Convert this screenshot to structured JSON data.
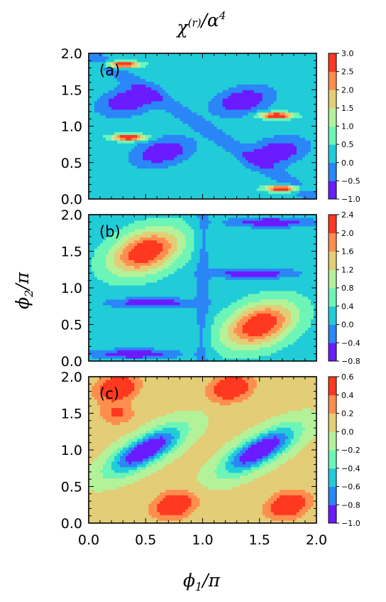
{
  "figure": {
    "title": "χ(r)/α4",
    "xlabel": "ϕ1/π",
    "ylabel": "ϕ2/π"
  },
  "chart_data": [
    {
      "type": "heatmap",
      "panel_label": "(a)",
      "x_range": [
        0.0,
        2.0
      ],
      "y_range": [
        0.0,
        2.0
      ],
      "x_ticks": [
        "0.0",
        "0.5",
        "1.0",
        "1.5",
        "2.0"
      ],
      "y_ticks": [
        "0.0",
        "0.5",
        "1.0",
        "1.5",
        "2.0"
      ],
      "colorbar_levels": [
        -1.0,
        -0.5,
        0.0,
        0.5,
        1.0,
        1.5,
        2.0,
        2.5,
        3.0
      ],
      "colorbar_ticks": [
        "−1.0",
        "−0.5",
        "0.0",
        "0.5",
        "1.0",
        "1.5",
        "2.0",
        "2.5",
        "3.0"
      ],
      "features": {
        "peak_points_x_y": [
          [
            0.3,
            1.85
          ],
          [
            0.35,
            0.85
          ],
          [
            1.65,
            1.15
          ],
          [
            1.7,
            0.15
          ]
        ],
        "low_lobe_points_x_y": [
          [
            0.35,
            1.35
          ],
          [
            0.65,
            0.65
          ],
          [
            1.35,
            1.35
          ],
          [
            1.65,
            0.65
          ]
        ]
      },
      "colormap": "rainbow"
    },
    {
      "type": "heatmap",
      "panel_label": "(b)",
      "x_range": [
        0.0,
        2.0
      ],
      "y_range": [
        0.0,
        2.0
      ],
      "x_ticks": [
        "0.0",
        "0.5",
        "1.0",
        "1.5",
        "2.0"
      ],
      "y_ticks": [
        "0.0",
        "0.5",
        "1.0",
        "1.5",
        "2.0"
      ],
      "colorbar_levels": [
        -0.8,
        -0.4,
        0.0,
        0.4,
        0.8,
        1.2,
        1.6,
        2.0,
        2.4
      ],
      "colorbar_ticks": [
        "−0.8",
        "−0.4",
        "0.0",
        "0.4",
        "0.8",
        "1.2",
        "1.6",
        "2.0",
        "2.4"
      ],
      "features": {
        "peak_points_x_y": [
          [
            0.5,
            1.5
          ],
          [
            1.5,
            0.5
          ]
        ],
        "low_lobe_points_x_y": [
          [
            0.5,
            0.75
          ],
          [
            1.5,
            1.25
          ],
          [
            0.5,
            0.1
          ],
          [
            1.5,
            1.9
          ]
        ]
      },
      "colormap": "rainbow"
    },
    {
      "type": "heatmap",
      "panel_label": "(c)",
      "x_range": [
        0.0,
        2.0
      ],
      "y_range": [
        0.0,
        2.0
      ],
      "x_ticks": [
        "0.0",
        "0.5",
        "1.0",
        "1.5",
        "2.0"
      ],
      "y_ticks": [
        "0.0",
        "0.5",
        "1.0",
        "1.5",
        "2.0"
      ],
      "colorbar_levels": [
        -1.0,
        -0.8,
        -0.6,
        -0.4,
        -0.2,
        0.0,
        0.2,
        0.4,
        0.6
      ],
      "colorbar_ticks": [
        "−1.0",
        "−0.8",
        "−0.6",
        "−0.4",
        "−0.2",
        "0.0",
        "0.2",
        "0.4",
        "0.6"
      ],
      "features": {
        "minimum_points_x_y": [
          [
            0.5,
            1.0
          ],
          [
            1.5,
            1.0
          ]
        ],
        "maximum_points_x_y": [
          [
            0.25,
            1.85
          ],
          [
            0.75,
            0.25
          ],
          [
            1.25,
            1.85
          ],
          [
            1.75,
            0.25
          ]
        ]
      },
      "colormap": "rainbow"
    }
  ],
  "colors": {
    "rainbow": [
      "#6a1bff",
      "#2b86f7",
      "#21ccd8",
      "#6df5b7",
      "#b4f29a",
      "#e3cd77",
      "#ff8e4e",
      "#ff3820"
    ]
  }
}
